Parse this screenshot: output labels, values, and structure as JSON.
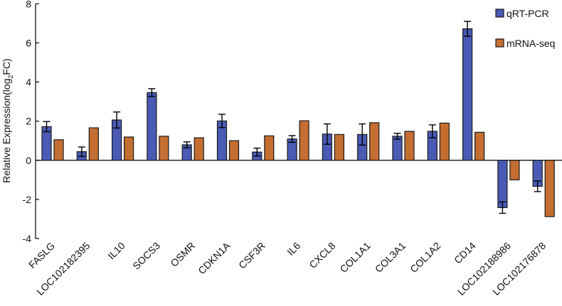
{
  "chart_data": {
    "type": "bar",
    "title": "",
    "xlabel": "",
    "ylabel": "Relative Expression(log",
    "ylabel_sub": "2",
    "ylabel_tail": "FC)",
    "ylim": [
      -4,
      8
    ],
    "yticks": [
      -4,
      -2,
      0,
      2,
      4,
      6,
      8
    ],
    "grid": false,
    "legend_position": "top-right",
    "categories": [
      "FASLG",
      "LOC102182395",
      "IL10",
      "SOCS3",
      "OSMR",
      "CDKN1A",
      "CSF3R",
      "IL6",
      "CXCL8",
      "COL1A1",
      "COL3A1",
      "COL1A2",
      "CD14",
      "LOC102188986",
      "LOC102176878"
    ],
    "series": [
      {
        "name": "qRT-PCR",
        "color": "#4a5bb5",
        "values": [
          1.72,
          0.44,
          2.06,
          3.46,
          0.79,
          2.01,
          0.42,
          1.09,
          1.34,
          1.32,
          1.23,
          1.48,
          6.72,
          -2.42,
          -1.33
        ],
        "error": [
          0.26,
          0.24,
          0.41,
          0.2,
          0.15,
          0.34,
          0.2,
          0.17,
          0.52,
          0.54,
          0.15,
          0.33,
          0.38,
          0.29,
          0.27
        ]
      },
      {
        "name": "mRNA-seq",
        "color": "#c46e32",
        "values": [
          1.05,
          1.66,
          1.19,
          1.23,
          1.15,
          1.0,
          1.25,
          2.02,
          1.32,
          1.92,
          1.48,
          1.9,
          1.43,
          -1.0,
          -2.88
        ]
      }
    ]
  }
}
